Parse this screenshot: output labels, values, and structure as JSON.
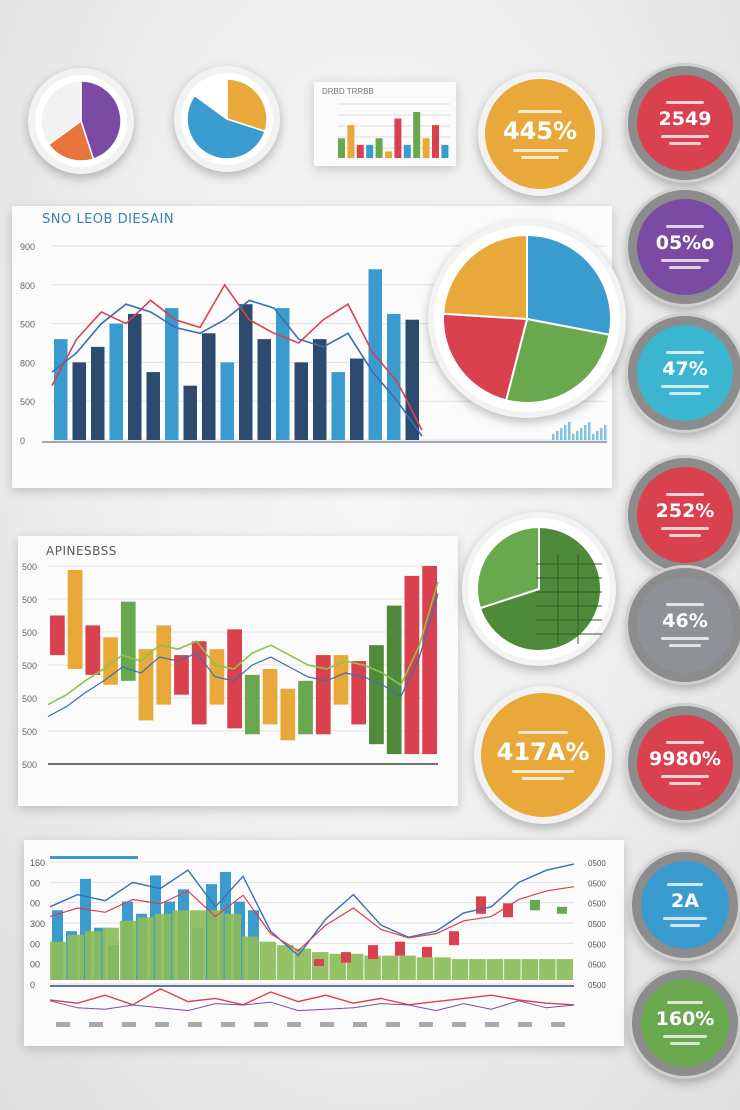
{
  "colors": {
    "purple": "#7b4aa3",
    "orange": "#e8743e",
    "red": "#d9414e",
    "blue": "#3a9bcf",
    "navy": "#2d4b6e",
    "yellow": "#e9a93a",
    "green": "#6aa84f",
    "teal": "#3bb5d0",
    "gray": "#8e9196",
    "darkgreen": "#4f8a3a"
  },
  "badges": [
    {
      "id": "b1",
      "value": "445%",
      "color": "#e9a93a",
      "style": "ring"
    },
    {
      "id": "b2",
      "value": "2549",
      "color": "#d9414e",
      "style": "gear"
    },
    {
      "id": "b3",
      "value": "05%o",
      "color": "#7b4aa3",
      "style": "gear"
    },
    {
      "id": "b4",
      "value": "47%",
      "color": "#3bb5d0",
      "style": "gear"
    },
    {
      "id": "b5",
      "value": "252%",
      "color": "#d9414e",
      "style": "gear"
    },
    {
      "id": "b6",
      "value": "46%",
      "color": "#8e9196",
      "style": "gear"
    },
    {
      "id": "b7",
      "value": "417A%",
      "color": "#e9a93a",
      "style": "ring"
    },
    {
      "id": "b8",
      "value": "9980%",
      "color": "#d9414e",
      "style": "gear"
    },
    {
      "id": "b9",
      "value": "2A",
      "color": "#3a9bcf",
      "style": "gear"
    },
    {
      "id": "b10",
      "value": "160%",
      "color": "#6aa84f",
      "style": "gear"
    }
  ],
  "chart_data": [
    {
      "id": "mini-pie-1",
      "type": "pie",
      "values": [
        45,
        20,
        35
      ],
      "colors": [
        "#7b4aa3",
        "#e8743e",
        "#f2f2f2"
      ]
    },
    {
      "id": "mini-pie-2",
      "type": "pie",
      "values": [
        30,
        55,
        15
      ],
      "colors": [
        "#e9a93a",
        "#3a9bcf",
        "#ffffff"
      ]
    },
    {
      "id": "mini-bar",
      "type": "bar",
      "title": "DRBD TRRBB",
      "values": [
        3,
        5,
        2,
        2,
        3,
        1,
        6,
        2,
        7,
        3,
        5,
        2
      ],
      "colors": [
        "#6aa84f",
        "#e9a93a",
        "#d9414e",
        "#3a9bcf"
      ]
    },
    {
      "id": "main-bar",
      "type": "bar",
      "title": "SNO LEOB DIESAIN",
      "ylabel_ticks": [
        "0",
        "500",
        "800",
        "500",
        "800",
        "900"
      ],
      "values": [
        52,
        40,
        48,
        60,
        65,
        35,
        68,
        28,
        55,
        40,
        70,
        52,
        68,
        40,
        52,
        35,
        42,
        88,
        65,
        62
      ],
      "line_a": [
        28,
        52,
        66,
        60,
        72,
        62,
        58,
        80,
        62,
        55,
        50,
        62,
        70,
        45,
        30,
        5
      ],
      "line_b": [
        35,
        45,
        60,
        70,
        66,
        58,
        55,
        62,
        72,
        68,
        52,
        48,
        55,
        35,
        20,
        2
      ]
    },
    {
      "id": "main-pie",
      "type": "pie",
      "values": [
        28,
        26,
        22,
        24
      ],
      "colors": [
        "#3a9bcf",
        "#6aa84f",
        "#d9414e",
        "#e9a93a"
      ]
    },
    {
      "id": "floating-bar",
      "type": "bar",
      "title": "APINESBSS",
      "ylabel_ticks": [
        "500",
        "500",
        "500",
        "500",
        "500",
        "500",
        "500"
      ],
      "values": [
        [
          55,
          75
        ],
        [
          48,
          98
        ],
        [
          45,
          70
        ],
        [
          40,
          64
        ],
        [
          42,
          82
        ],
        [
          22,
          58
        ],
        [
          30,
          70
        ],
        [
          35,
          55
        ],
        [
          20,
          62
        ],
        [
          30,
          58
        ],
        [
          18,
          68
        ],
        [
          15,
          45
        ],
        [
          20,
          48
        ],
        [
          12,
          38
        ],
        [
          15,
          42
        ],
        [
          15,
          55
        ],
        [
          30,
          55
        ],
        [
          20,
          52
        ],
        [
          10,
          60
        ],
        [
          5,
          80
        ],
        [
          5,
          95
        ],
        [
          5,
          100
        ]
      ],
      "colors": [
        "#d9414e",
        "#e9a93a",
        "#d9414e",
        "#e9a93a",
        "#6aa84f",
        "#e9a93a",
        "#e9a93a",
        "#d9414e",
        "#d9414e",
        "#e9a93a",
        "#d9414e",
        "#6aa84f",
        "#e9a93a",
        "#e9a93a",
        "#6aa84f",
        "#d9414e",
        "#e9a93a",
        "#d9414e",
        "#4f8a3a",
        "#4f8a3a",
        "#d9414e",
        "#d9414e"
      ]
    },
    {
      "id": "grid-pie",
      "type": "pie",
      "values": [
        70,
        30
      ],
      "colors": [
        "#4f8a3a",
        "#6aa84f"
      ]
    },
    {
      "id": "combo",
      "type": "area",
      "ylabel_ticks": [
        "160",
        "00",
        "00",
        "300",
        "00",
        "00",
        "0"
      ],
      "y2_ticks": [
        "0500",
        "0500",
        "0500",
        "0500",
        "0500",
        "0500",
        "0500"
      ],
      "bars": [
        40,
        28,
        58,
        30,
        20,
        45,
        38,
        60,
        45,
        52,
        30,
        55,
        62,
        45,
        40
      ],
      "area": [
        22,
        26,
        28,
        30,
        34,
        36,
        38,
        40,
        40,
        40,
        38,
        25,
        22,
        20,
        18,
        16,
        15,
        15,
        14,
        14,
        14,
        13,
        13,
        12,
        12,
        12,
        12,
        12,
        12,
        12
      ],
      "candles": [
        [
          8,
          12
        ],
        [
          10,
          16
        ],
        [
          12,
          20
        ],
        [
          14,
          22
        ],
        [
          13,
          19
        ],
        [
          20,
          28
        ],
        [
          38,
          48
        ],
        [
          36,
          44
        ],
        [
          40,
          46
        ],
        [
          38,
          42
        ]
      ],
      "wave": [
        5,
        3,
        8,
        2,
        12,
        4,
        6,
        2,
        10,
        4,
        8,
        3,
        6,
        2,
        4,
        6,
        8,
        5,
        3,
        2
      ]
    }
  ]
}
